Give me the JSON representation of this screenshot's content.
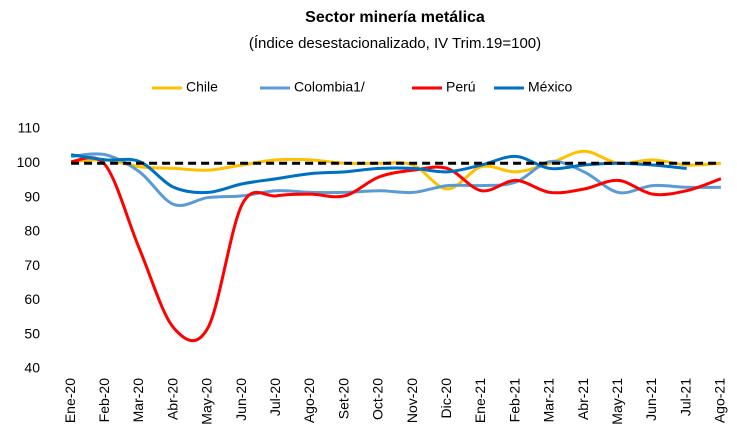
{
  "chart_data": {
    "type": "line",
    "title": "Sector minería metálica",
    "subtitle": "(Índice desestacionalizado, IV Trim.19=100)",
    "categories": [
      "Ene-20",
      "Feb-20",
      "Mar-20",
      "Abr-20",
      "May-20",
      "Jun-20",
      "Jul-20",
      "Ago-20",
      "Set-20",
      "Oct-20",
      "Nov-20",
      "Dic-20",
      "Ene-21",
      "Feb-21",
      "Mar-21",
      "Abr-21",
      "May-21",
      "Jun-21",
      "Jul-21",
      "Ago-21"
    ],
    "series": [
      {
        "name": "Chile",
        "color": "#FFC000",
        "values": [
          100.5,
          101,
          99,
          98.5,
          98,
          99.5,
          101,
          101,
          100,
          100,
          99.5,
          92.5,
          99,
          97.5,
          100,
          103.5,
          100,
          101,
          99.5,
          100
        ]
      },
      {
        "name": "Colombia1/",
        "color": "#5B9BD5",
        "values": [
          102,
          102.5,
          97.5,
          88,
          90,
          90.5,
          92,
          91.5,
          91.5,
          92,
          91.5,
          93.5,
          93.5,
          94.5,
          100.5,
          97.5,
          91.5,
          93.5,
          93,
          93
        ]
      },
      {
        "name": "Perú",
        "color": "#FF0000",
        "values": [
          100.5,
          99.5,
          75,
          52,
          52,
          88,
          90.5,
          91,
          90.5,
          96,
          98,
          98.5,
          92,
          95,
          91.5,
          92.5,
          95,
          91,
          92,
          95.5
        ]
      },
      {
        "name": "México",
        "color": "#0070C0",
        "values": [
          102.5,
          101,
          100.5,
          93,
          91.5,
          94,
          95.5,
          97,
          97.5,
          98.5,
          98.5,
          97.5,
          99.5,
          102,
          98.5,
          99.5,
          100,
          99.5,
          98.5,
          null
        ]
      }
    ],
    "reference_line": 100,
    "ylim": [
      40,
      110
    ],
    "yticks": [
      40,
      50,
      60,
      70,
      80,
      90,
      100,
      110
    ],
    "legend": "top"
  }
}
